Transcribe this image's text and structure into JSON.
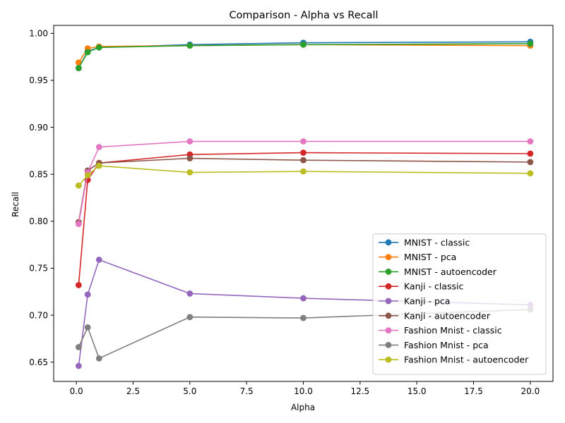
{
  "chart_data": {
    "type": "line",
    "title": "Comparison - Alpha vs Recall",
    "xlabel": "Alpha",
    "ylabel": "Recall",
    "xlim": [
      -1.0,
      21.0
    ],
    "ylim": [
      0.6295,
      1.0085
    ],
    "xticks": [
      0.0,
      2.5,
      5.0,
      7.5,
      10.0,
      12.5,
      15.0,
      17.5,
      20.0
    ],
    "xtick_labels": [
      "0.0",
      "2.5",
      "5.0",
      "7.5",
      "10.0",
      "12.5",
      "15.0",
      "17.5",
      "20.0"
    ],
    "yticks": [
      0.65,
      0.7,
      0.75,
      0.8,
      0.85,
      0.9,
      0.95,
      1.0
    ],
    "ytick_labels": [
      "0.65",
      "0.70",
      "0.75",
      "0.80",
      "0.85",
      "0.90",
      "0.95",
      "1.00"
    ],
    "grid": false,
    "legend_position": "lower-right",
    "x": [
      0.1,
      0.5,
      1,
      5,
      10,
      20
    ],
    "series": [
      {
        "name": "MNIST - classic",
        "color": "#1f77b4",
        "values": [
          0.963,
          0.981,
          0.985,
          0.988,
          0.99,
          0.991
        ]
      },
      {
        "name": "MNIST - pca",
        "color": "#ff7f0e",
        "values": [
          0.969,
          0.984,
          0.986,
          0.987,
          0.988,
          0.987
        ]
      },
      {
        "name": "MNIST - autoencoder",
        "color": "#2ca02c",
        "values": [
          0.963,
          0.98,
          0.985,
          0.987,
          0.988,
          0.989
        ]
      },
      {
        "name": "Kanji - classic",
        "color": "#d62728",
        "values": [
          0.732,
          0.844,
          0.862,
          0.871,
          0.873,
          0.872
        ]
      },
      {
        "name": "Kanji - pca",
        "color": "#9467bd",
        "values": [
          0.646,
          0.722,
          0.759,
          0.723,
          0.718,
          0.711
        ]
      },
      {
        "name": "Kanji - autoencoder",
        "color": "#8c564b",
        "values": [
          0.799,
          0.854,
          0.862,
          0.867,
          0.865,
          0.863
        ]
      },
      {
        "name": "Fashion Mnist - classic",
        "color": "#e377c2",
        "values": [
          0.797,
          0.852,
          0.879,
          0.885,
          0.885,
          0.885
        ]
      },
      {
        "name": "Fashion Mnist - pca",
        "color": "#7f7f7f",
        "values": [
          0.666,
          0.687,
          0.654,
          0.698,
          0.697,
          0.706
        ]
      },
      {
        "name": "Fashion Mnist - autoencoder",
        "color": "#bcbd22",
        "values": [
          0.838,
          0.849,
          0.859,
          0.852,
          0.853,
          0.851
        ]
      }
    ]
  }
}
